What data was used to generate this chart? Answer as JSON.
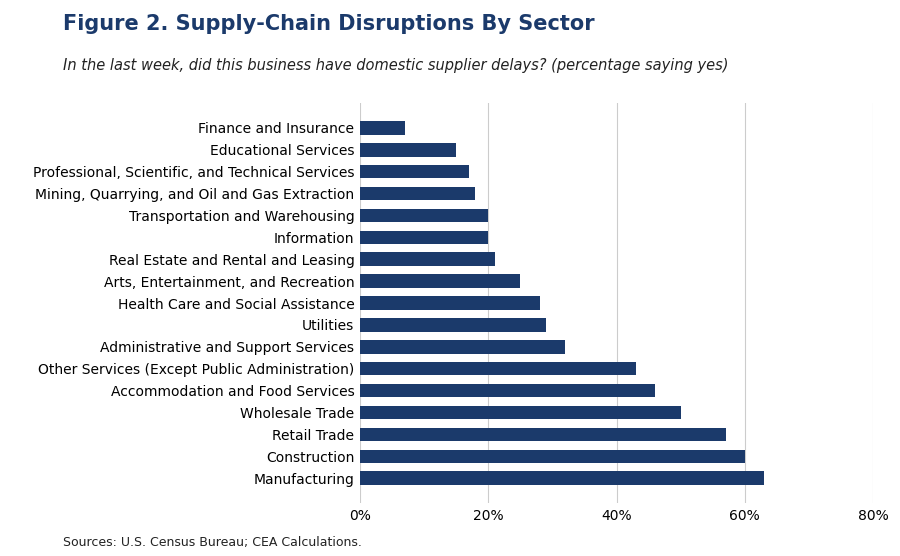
{
  "title": "Figure 2. Supply-Chain Disruptions By Sector",
  "subtitle": "In the last week, did this business have domestic supplier delays? (percentage saying yes)",
  "source": "Sources: U.S. Census Bureau; CEA Calculations.",
  "bar_color": "#1b3a6b",
  "background_color": "#ffffff",
  "categories": [
    "Manufacturing",
    "Construction",
    "Retail Trade",
    "Wholesale Trade",
    "Accommodation and Food Services",
    "Other Services (Except Public Administration)",
    "Administrative and Support Services",
    "Utilities",
    "Health Care and Social Assistance",
    "Arts, Entertainment, and Recreation",
    "Real Estate and Rental and Leasing",
    "Information",
    "Transportation and Warehousing",
    "Mining, Quarrying, and Oil and Gas Extraction",
    "Professional, Scientific, and Technical Services",
    "Educational Services",
    "Finance and Insurance"
  ],
  "values": [
    63,
    60,
    57,
    50,
    46,
    43,
    32,
    29,
    28,
    25,
    21,
    20,
    20,
    18,
    17,
    15,
    7
  ],
  "xlim": [
    0,
    80
  ],
  "xticks": [
    0,
    20,
    40,
    60,
    80
  ],
  "xtick_labels": [
    "0%",
    "20%",
    "40%",
    "60%",
    "80%"
  ],
  "title_fontsize": 15,
  "subtitle_fontsize": 10.5,
  "label_fontsize": 10,
  "tick_fontsize": 10,
  "source_fontsize": 9
}
